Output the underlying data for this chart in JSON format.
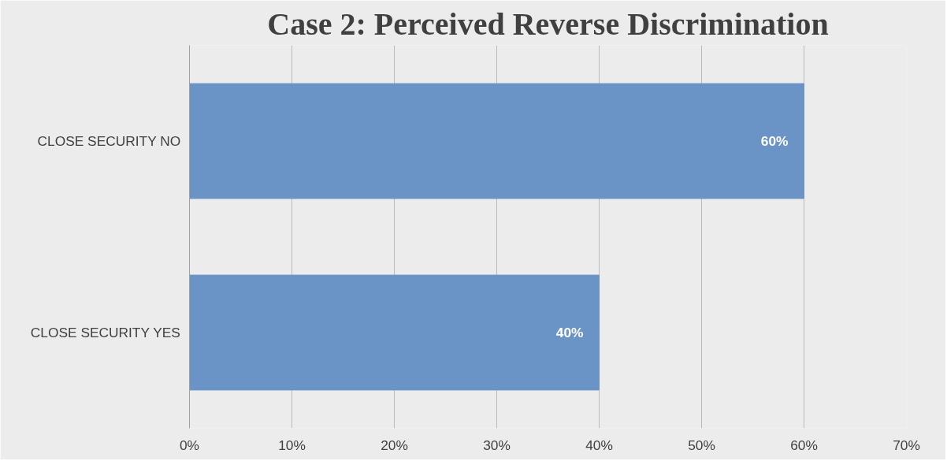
{
  "chart_data": {
    "type": "bar",
    "orientation": "horizontal",
    "title": "Case 2: Perceived Reverse Discrimination",
    "categories": [
      "CLOSE SECURITY NO",
      "CLOSE SECURITY YES"
    ],
    "values": [
      60,
      40
    ],
    "color": "#6a93c6",
    "value_labels": [
      "60%",
      "40%"
    ],
    "xlim": [
      0,
      70
    ],
    "xticks": [
      {
        "value": 0,
        "label": "0%"
      },
      {
        "value": 10,
        "label": "10%"
      },
      {
        "value": 20,
        "label": "20%"
      },
      {
        "value": 30,
        "label": "30%"
      },
      {
        "value": 40,
        "label": "40%"
      },
      {
        "value": 50,
        "label": "50%"
      },
      {
        "value": 60,
        "label": "60%"
      },
      {
        "value": 70,
        "label": "70%"
      }
    ],
    "grid": "x"
  }
}
